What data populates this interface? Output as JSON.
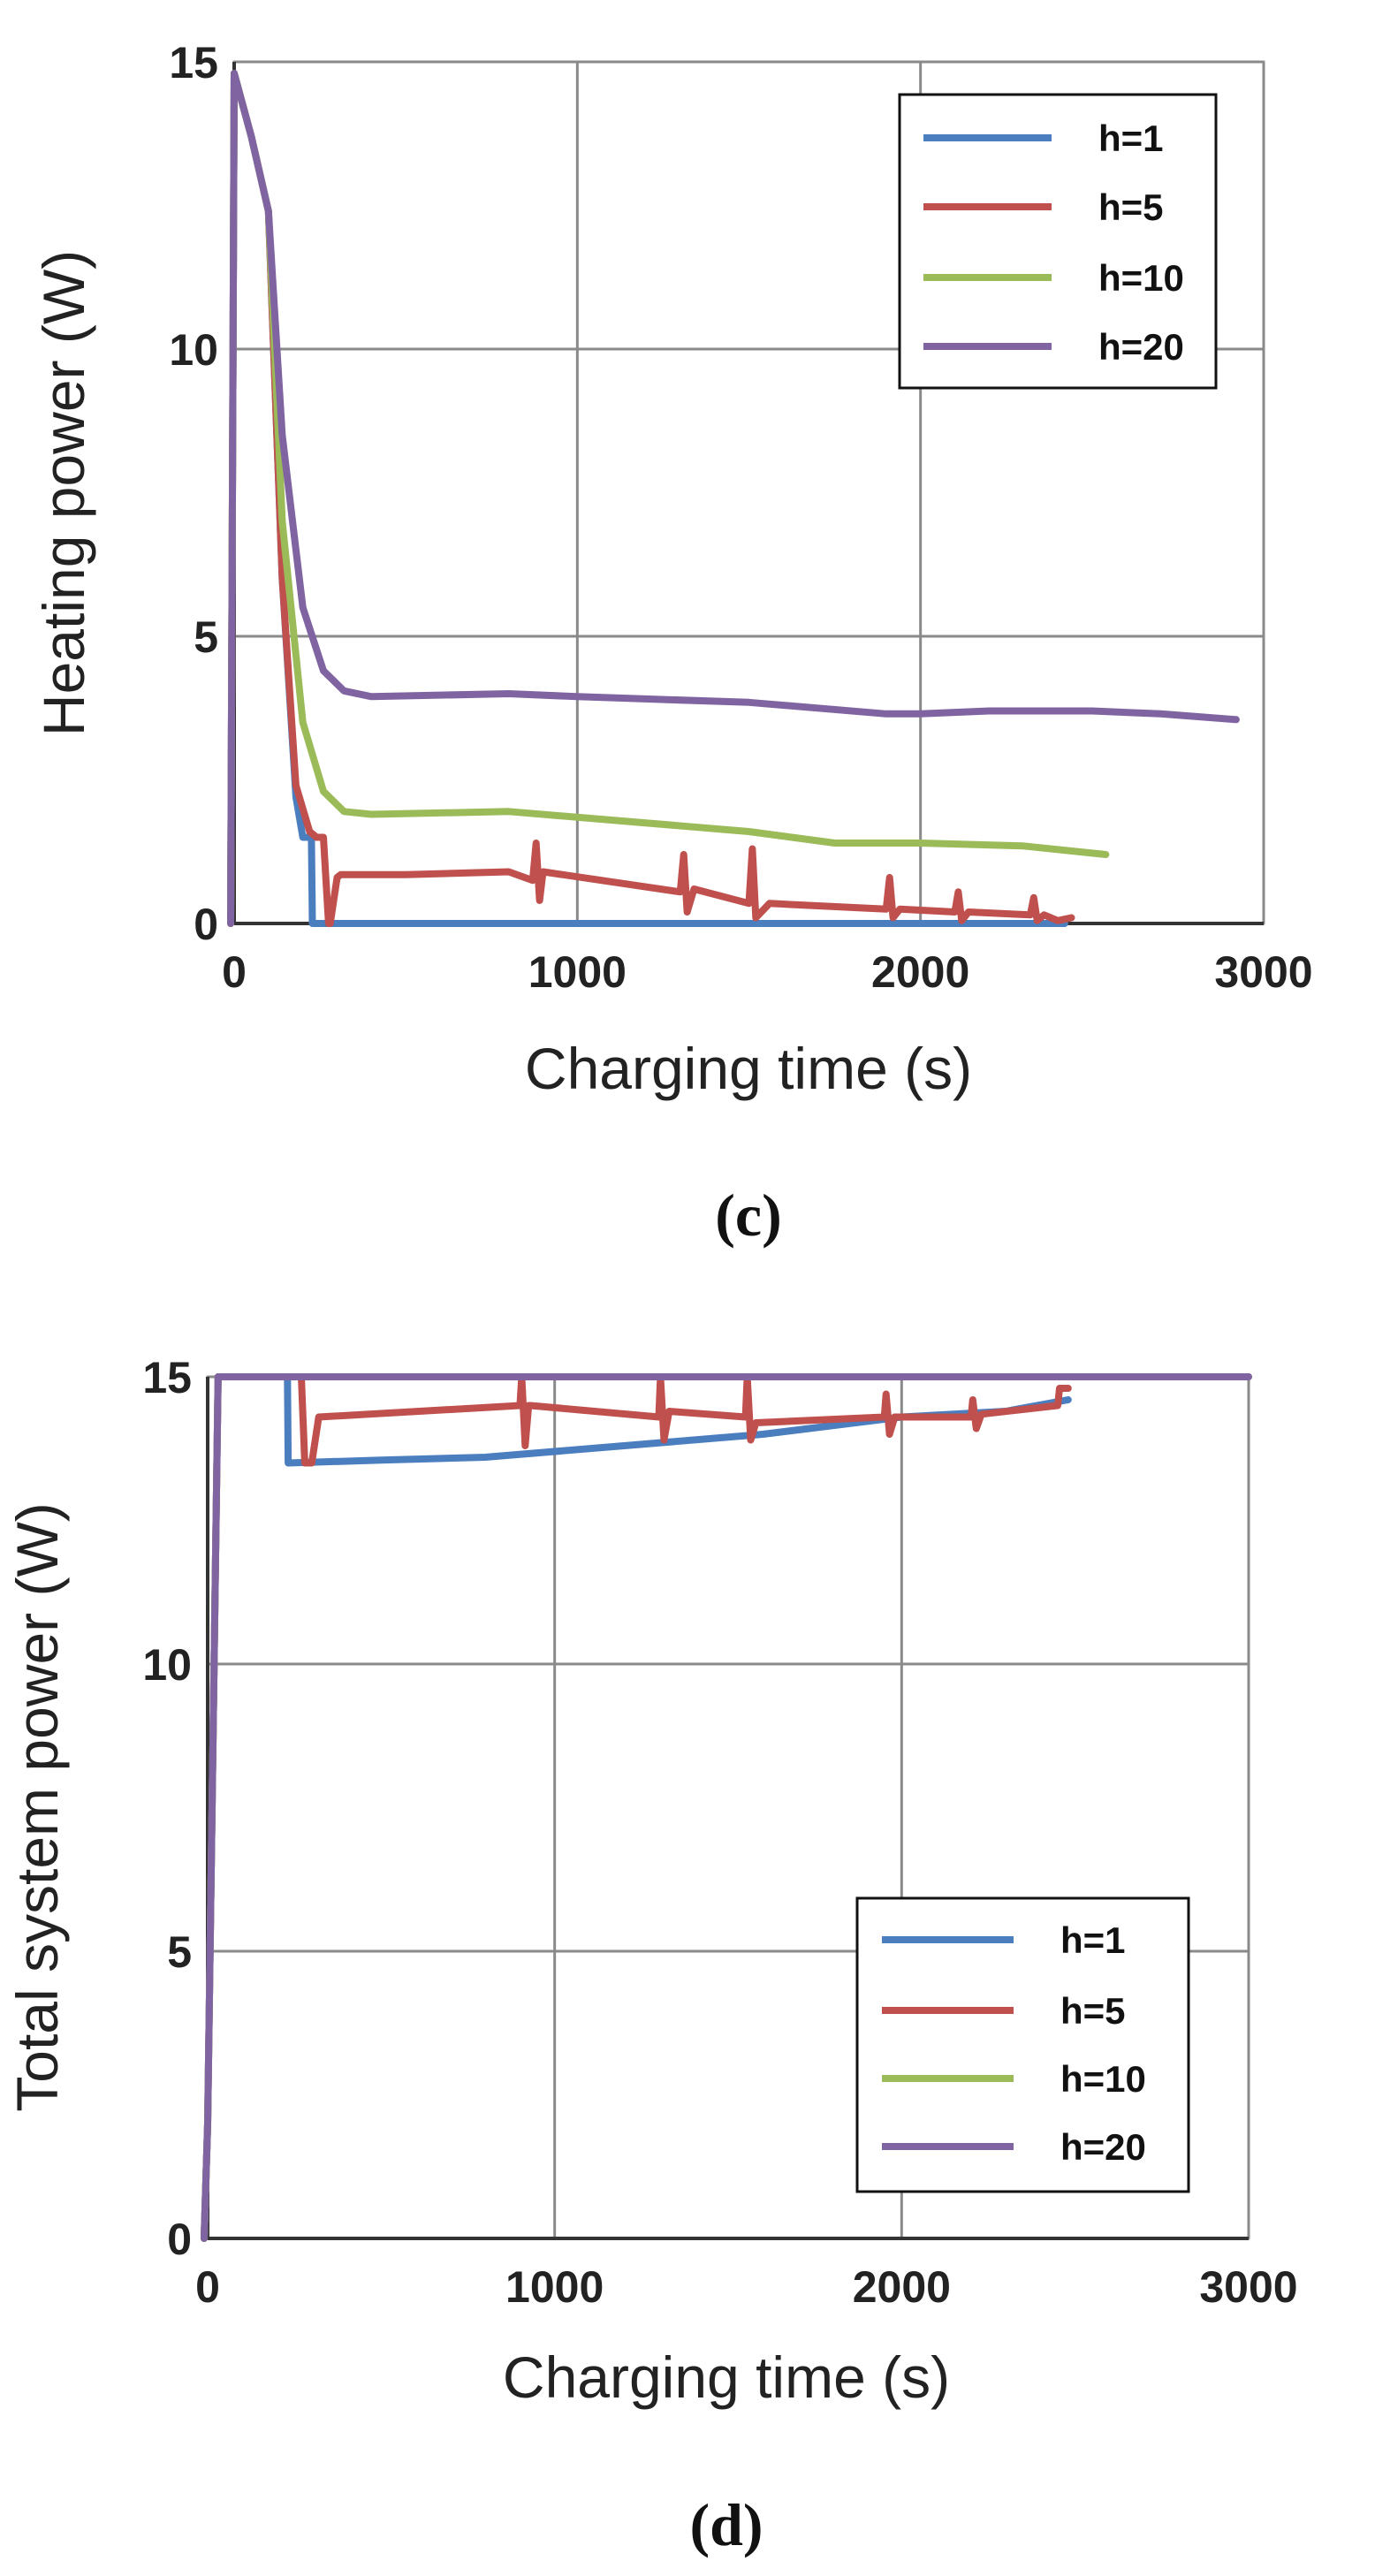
{
  "colors": {
    "h1": "#4a7ebf",
    "h5": "#c0504d",
    "h10": "#9bbb59",
    "h20": "#8064a2"
  },
  "chart_data": [
    {
      "type": "line",
      "panel_label": "(c)",
      "xlabel": "Charging time (s)",
      "ylabel": "Heating power (W)",
      "xlim": [
        0,
        3000
      ],
      "ylim": [
        0,
        15
      ],
      "xticks": [
        0,
        1000,
        2000,
        3000
      ],
      "xtick_labels": [
        "0",
        "1000",
        "2000",
        "3000"
      ],
      "yticks": [
        0,
        5,
        10,
        15
      ],
      "ytick_labels": [
        "0",
        "5",
        "10",
        "15"
      ],
      "grid": true,
      "legend_position": "top-right",
      "series": [
        {
          "name": "h=1",
          "color_key": "h1",
          "x": [
            -40,
            0,
            50,
            100,
            140,
            180,
            200,
            225,
            228,
            260,
            1000,
            2000,
            2420
          ],
          "y": [
            0,
            14.8,
            13.7,
            12.4,
            6,
            2.2,
            1.5,
            1.5,
            0,
            0,
            0,
            0,
            0
          ]
        },
        {
          "name": "h=5",
          "color_key": "h5",
          "x": [
            -40,
            0,
            50,
            100,
            140,
            180,
            220,
            240,
            260,
            275,
            280,
            300,
            310,
            500,
            800,
            870,
            880,
            890,
            900,
            1300,
            1310,
            1320,
            1340,
            1500,
            1510,
            1520,
            1560,
            1900,
            1910,
            1920,
            1940,
            2100,
            2110,
            2120,
            2140,
            2320,
            2330,
            2340,
            2360,
            2400,
            2440
          ],
          "y": [
            0,
            14.8,
            13.7,
            12.4,
            6,
            2.4,
            1.6,
            1.5,
            1.5,
            0,
            0,
            0.8,
            0.85,
            0.85,
            0.9,
            0.75,
            1.4,
            0.4,
            0.9,
            0.55,
            1.2,
            0.2,
            0.6,
            0.35,
            1.3,
            0.1,
            0.35,
            0.25,
            0.8,
            0.1,
            0.25,
            0.2,
            0.55,
            0.05,
            0.2,
            0.15,
            0.45,
            0.05,
            0.15,
            0.05,
            0.1
          ]
        },
        {
          "name": "h=10",
          "color_key": "h10",
          "x": [
            -40,
            0,
            50,
            100,
            140,
            200,
            260,
            320,
            400,
            800,
            1500,
            1750,
            2000,
            2300,
            2540
          ],
          "y": [
            0,
            14.8,
            13.7,
            12.4,
            7,
            3.5,
            2.3,
            1.95,
            1.9,
            1.95,
            1.6,
            1.4,
            1.4,
            1.35,
            1.2
          ]
        },
        {
          "name": "h=20",
          "color_key": "h20",
          "x": [
            -40,
            0,
            50,
            100,
            140,
            200,
            260,
            320,
            400,
            800,
            1000,
            1500,
            1900,
            2000,
            2200,
            2500,
            2700,
            2920
          ],
          "y": [
            0,
            14.8,
            13.7,
            12.4,
            8.5,
            5.5,
            4.4,
            4.05,
            3.95,
            4.0,
            3.95,
            3.85,
            3.65,
            3.65,
            3.7,
            3.7,
            3.65,
            3.55
          ]
        }
      ]
    },
    {
      "type": "line",
      "panel_label": "(d)",
      "xlabel": "Charging time (s)",
      "ylabel": "Total system power (W)",
      "xlim": [
        0,
        3000
      ],
      "ylim": [
        0,
        15
      ],
      "xticks": [
        0,
        1000,
        2000,
        3000
      ],
      "xtick_labels": [
        "0",
        "1000",
        "2000",
        "3000"
      ],
      "yticks": [
        0,
        5,
        10,
        15
      ],
      "ytick_labels": [
        "0",
        "5",
        "10",
        "15"
      ],
      "grid": true,
      "legend_position": "bottom-right",
      "series": [
        {
          "name": "h=1",
          "color_key": "h1",
          "x": [
            -20,
            0,
            30,
            230,
            232,
            500,
            800,
            1200,
            1600,
            2000,
            2300,
            2480
          ],
          "y": [
            0,
            2,
            15,
            15,
            13.5,
            13.55,
            13.6,
            13.8,
            14.0,
            14.3,
            14.4,
            14.6
          ]
        },
        {
          "name": "h=5",
          "color_key": "h5",
          "x": [
            -20,
            0,
            30,
            250,
            270,
            280,
            300,
            320,
            900,
            905,
            915,
            925,
            930,
            1300,
            1305,
            1315,
            1330,
            1550,
            1555,
            1565,
            1580,
            1950,
            1955,
            1965,
            1980,
            2200,
            2205,
            2215,
            2230,
            2450,
            2455,
            2480
          ],
          "y": [
            0,
            2,
            15,
            15,
            15,
            13.5,
            13.5,
            14.3,
            14.5,
            15,
            13.8,
            14.5,
            14.5,
            14.3,
            15,
            13.9,
            14.4,
            14.3,
            15,
            13.9,
            14.2,
            14.3,
            14.7,
            14.0,
            14.3,
            14.3,
            14.6,
            14.1,
            14.35,
            14.5,
            14.8,
            14.8
          ]
        },
        {
          "name": "h=10",
          "color_key": "h10",
          "x": [
            -20,
            0,
            30,
            3000
          ],
          "y": [
            0,
            2,
            15,
            15
          ]
        },
        {
          "name": "h=20",
          "color_key": "h20",
          "x": [
            -20,
            0,
            30,
            3000
          ],
          "y": [
            0,
            2,
            15,
            15
          ]
        }
      ]
    }
  ]
}
